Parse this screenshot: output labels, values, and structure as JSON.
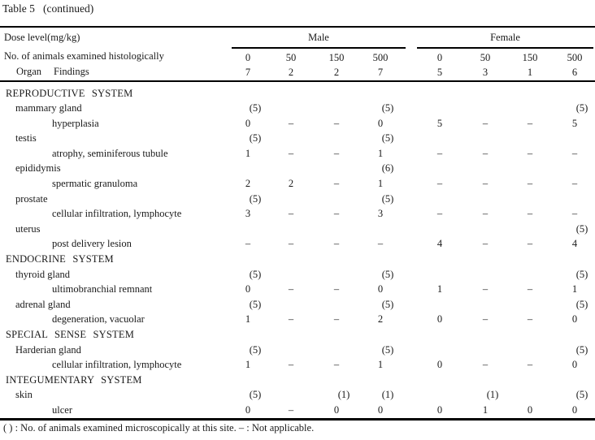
{
  "title": "Table 5   (continued)",
  "header": {
    "dose_label": "Dose level(mg/kg)",
    "n_label": "No. of animals examined histologically",
    "organ_label": "Organ",
    "findings_label": "Findings",
    "groups": [
      {
        "label": "Male",
        "doses": [
          "0",
          "50",
          "150",
          "500"
        ],
        "n_examined": [
          "7",
          "2",
          "2",
          "7"
        ]
      },
      {
        "label": "Female",
        "doses": [
          "0",
          "50",
          "150",
          "500"
        ],
        "n_examined": [
          "5",
          "3",
          "1",
          "6"
        ]
      }
    ]
  },
  "rows": [
    {
      "type": "system",
      "label": "REPRODUCTIVE SYSTEM",
      "values": [
        "",
        "",
        "",
        "",
        "",
        "",
        "",
        ""
      ]
    },
    {
      "type": "organ",
      "label": "mammary gland",
      "values": [
        "(5)",
        "",
        "",
        "(5)",
        "",
        "",
        "",
        "(5)"
      ]
    },
    {
      "type": "finding",
      "label": "hyperplasia",
      "values": [
        "0",
        "–",
        "–",
        "0",
        "5",
        "–",
        "–",
        "5"
      ]
    },
    {
      "type": "organ",
      "label": "testis",
      "values": [
        "(5)",
        "",
        "",
        "(5)",
        "",
        "",
        "",
        ""
      ]
    },
    {
      "type": "finding",
      "label": "atrophy, seminiferous tubule",
      "values": [
        "1",
        "–",
        "–",
        "1",
        "–",
        "–",
        "–",
        "–"
      ]
    },
    {
      "type": "organ",
      "label": "epididymis",
      "values": [
        "",
        "",
        "",
        "(6)",
        "",
        "",
        "",
        ""
      ]
    },
    {
      "type": "finding",
      "label": "spermatic granuloma",
      "values": [
        "2",
        "2",
        "–",
        "1",
        "–",
        "–",
        "–",
        "–"
      ]
    },
    {
      "type": "organ",
      "label": "prostate",
      "values": [
        "(5)",
        "",
        "",
        "(5)",
        "",
        "",
        "",
        ""
      ]
    },
    {
      "type": "finding",
      "label": "cellular infiltration, lymphocyte",
      "values": [
        "3",
        "–",
        "–",
        "3",
        "–",
        "–",
        "–",
        "–"
      ]
    },
    {
      "type": "organ",
      "label": "uterus",
      "values": [
        "",
        "",
        "",
        "",
        "",
        "",
        "",
        "(5)"
      ]
    },
    {
      "type": "finding",
      "label": "post delivery lesion",
      "values": [
        "–",
        "–",
        "–",
        "–",
        "4",
        "–",
        "–",
        "4"
      ]
    },
    {
      "type": "system",
      "label": "ENDOCRINE SYSTEM",
      "values": [
        "",
        "",
        "",
        "",
        "",
        "",
        "",
        ""
      ]
    },
    {
      "type": "organ",
      "label": "thyroid gland",
      "values": [
        "(5)",
        "",
        "",
        "(5)",
        "",
        "",
        "",
        "(5)"
      ]
    },
    {
      "type": "finding",
      "label": "ultimobranchial remnant",
      "values": [
        "0",
        "–",
        "–",
        "0",
        "1",
        "–",
        "–",
        "1"
      ]
    },
    {
      "type": "organ",
      "label": "adrenal gland",
      "values": [
        "(5)",
        "",
        "",
        "(5)",
        "",
        "",
        "",
        "(5)"
      ]
    },
    {
      "type": "finding",
      "label": "degeneration, vacuolar",
      "values": [
        "1",
        "–",
        "–",
        "2",
        "0",
        "–",
        "–",
        "0"
      ]
    },
    {
      "type": "system",
      "label": "SPECIAL SENSE SYSTEM",
      "values": [
        "",
        "",
        "",
        "",
        "",
        "",
        "",
        ""
      ]
    },
    {
      "type": "organ",
      "label": "Harderian gland",
      "values": [
        "(5)",
        "",
        "",
        "(5)",
        "",
        "",
        "",
        "(5)"
      ]
    },
    {
      "type": "finding",
      "label": "cellular infiltration, lymphocyte",
      "values": [
        "1",
        "–",
        "–",
        "1",
        "0",
        "–",
        "–",
        "0"
      ]
    },
    {
      "type": "system",
      "label": "INTEGUMENTARY SYSTEM",
      "values": [
        "",
        "",
        "",
        "",
        "",
        "",
        "",
        ""
      ]
    },
    {
      "type": "organ",
      "label": "skin",
      "values": [
        "(5)",
        "",
        "(1)",
        "(1)",
        "",
        "(1)",
        "",
        "(5)"
      ]
    },
    {
      "type": "finding",
      "label": "ulcer",
      "values": [
        "0",
        "–",
        "0",
        "0",
        "0",
        "1",
        "0",
        "0"
      ]
    }
  ],
  "footnote": "( ) : No. of animals examined microscopically at this site. – : Not applicable.",
  "colors": {
    "text": "#1a1a1a",
    "rule": "#000000",
    "background": "#ffffff"
  }
}
